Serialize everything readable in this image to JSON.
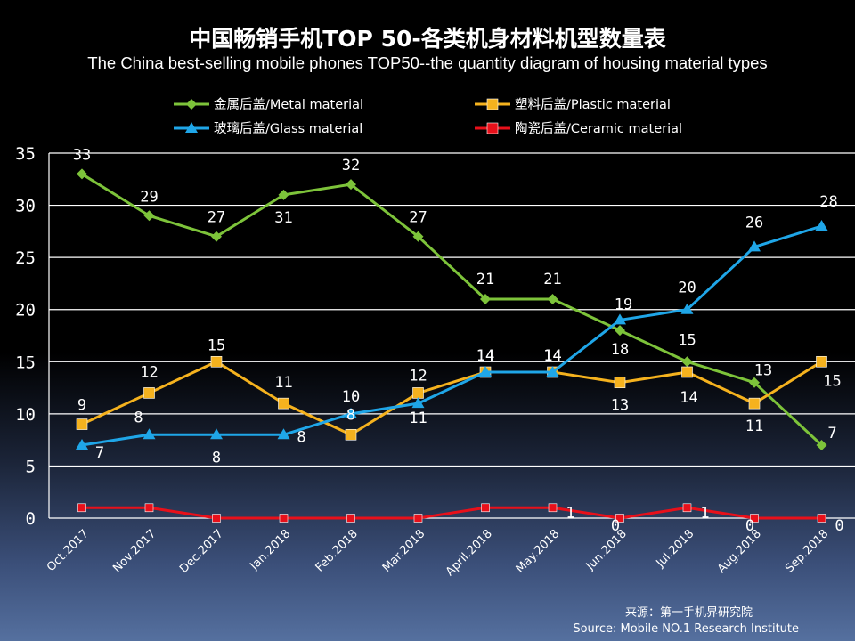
{
  "chart_data": {
    "type": "line",
    "title": "中国畅销手机TOP 50-各类机身材料机型数量表",
    "subtitle": "The China best-selling mobile phones TOP50--the quantity diagram of housing material types",
    "categories": [
      "Oct.2017",
      "Nov.2017",
      "Dec.2017",
      "Jan.2018",
      "Feb.2018",
      "Mar.2018",
      "April.2018",
      "May.2018",
      "Jun.2018",
      "Jul.2018",
      "Aug.2018",
      "Sep.2018"
    ],
    "ylim": [
      0,
      35
    ],
    "yticks": [
      "0",
      "5",
      "10",
      "15",
      "20",
      "25",
      "30",
      "35"
    ],
    "grid": true,
    "legend_position": "top",
    "series": [
      {
        "name": "金属后盖/Metal material",
        "color": "#7dc33a",
        "marker": "diamond",
        "values": [
          33,
          29,
          27,
          31,
          32,
          27,
          21,
          21,
          18,
          15,
          13,
          7
        ],
        "labels": [
          "33",
          "29",
          "27",
          "31",
          "32",
          "27",
          "21",
          "21",
          "18",
          "15",
          "13",
          "7"
        ]
      },
      {
        "name": "塑料后盖/Plastic material",
        "color": "#f5b21e",
        "marker": "square",
        "values": [
          9,
          12,
          15,
          11,
          8,
          12,
          14,
          14,
          13,
          14,
          11,
          15
        ],
        "labels": [
          "9",
          "12",
          "15",
          "11",
          "8",
          "12",
          "14",
          "14",
          "13",
          "14",
          "11",
          "15"
        ]
      },
      {
        "name": "玻璃后盖/Glass material",
        "color": "#1fa6e8",
        "marker": "triangle",
        "values": [
          7,
          8,
          8,
          8,
          10,
          11,
          14,
          14,
          19,
          20,
          26,
          28
        ],
        "labels": [
          "7",
          "8",
          "8",
          "8",
          "10",
          "11",
          "14",
          "14",
          "19",
          "20",
          "26",
          "28"
        ]
      },
      {
        "name": "陶瓷后盖/Ceramic material",
        "color": "#e8101a",
        "marker": "square",
        "values": [
          1,
          1,
          0,
          0,
          0,
          0,
          1,
          1,
          0,
          1,
          0,
          0
        ],
        "labels": [
          "",
          "",
          "",
          "",
          "",
          "",
          "",
          "1",
          "0",
          "1",
          "0",
          "0"
        ]
      }
    ],
    "source_cn": "来源：第一手机界研究院",
    "source_en": "Source: Mobile NO.1 Research Institute"
  }
}
